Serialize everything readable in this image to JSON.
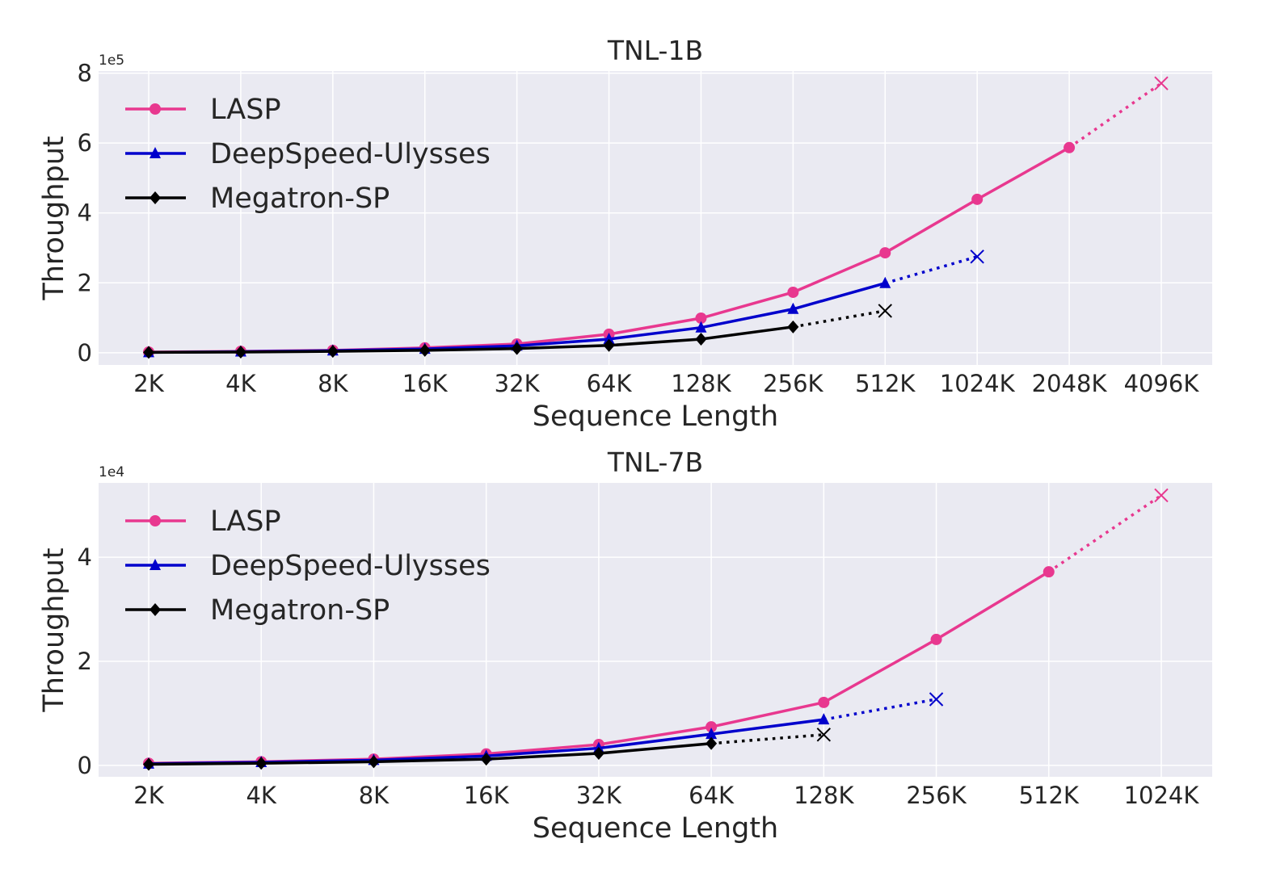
{
  "chart_data": [
    {
      "type": "line",
      "title": "TNL-1B",
      "xlabel": "Sequence Length",
      "ylabel": "Throughput",
      "y_multiplier_label": "1e5",
      "categories": [
        "2K",
        "4K",
        "8K",
        "16K",
        "32K",
        "64K",
        "128K",
        "256K",
        "512K",
        "1024K",
        "2048K",
        "4096K"
      ],
      "yticks": [
        0,
        2,
        4,
        6,
        8
      ],
      "ylim": [
        -0.35,
        8.06
      ],
      "grid": true,
      "legend": "top-left",
      "series": [
        {
          "name": "LASP",
          "color": "#e8388f",
          "marker": "circle",
          "values": [
            0.02,
            0.04,
            0.07,
            0.14,
            0.25,
            0.53,
            0.99,
            1.73,
            2.86,
            4.39,
            5.87,
            null
          ],
          "oom_estimate": {
            "category": "4096K",
            "value": 7.71
          }
        },
        {
          "name": "DeepSpeed-Ulysses",
          "color": "#0000cc",
          "marker": "triangle",
          "values": [
            0.01,
            0.03,
            0.06,
            0.11,
            0.2,
            0.39,
            0.72,
            1.25,
            1.99,
            null,
            null,
            null
          ],
          "oom_estimate": {
            "category": "1024K",
            "value": 2.75
          }
        },
        {
          "name": "Megatron-SP",
          "color": "#000000",
          "marker": "diamond",
          "values": [
            0.01,
            0.02,
            0.04,
            0.07,
            0.12,
            0.21,
            0.39,
            0.74,
            null,
            null,
            null,
            null
          ],
          "oom_estimate": {
            "category": "512K",
            "value": 1.2
          }
        }
      ]
    },
    {
      "type": "line",
      "title": "TNL-7B",
      "xlabel": "Sequence Length",
      "ylabel": "Throughput",
      "y_multiplier_label": "1e4",
      "categories": [
        "2K",
        "4K",
        "8K",
        "16K",
        "32K",
        "64K",
        "128K",
        "256K",
        "512K",
        "1024K"
      ],
      "yticks": [
        0,
        2,
        4
      ],
      "ylim": [
        -0.22,
        5.43
      ],
      "grid": true,
      "legend": "top-left",
      "series": [
        {
          "name": "LASP",
          "color": "#e8388f",
          "marker": "circle",
          "values": [
            0.04,
            0.07,
            0.12,
            0.22,
            0.4,
            0.74,
            1.21,
            2.42,
            3.72,
            null
          ],
          "oom_estimate": {
            "category": "1024K",
            "value": 5.19
          }
        },
        {
          "name": "DeepSpeed-Ulysses",
          "color": "#0000cc",
          "marker": "triangle",
          "values": [
            0.03,
            0.06,
            0.1,
            0.18,
            0.33,
            0.6,
            0.88,
            null,
            null,
            null
          ],
          "oom_estimate": {
            "category": "256K",
            "value": 1.27
          }
        },
        {
          "name": "Megatron-SP",
          "color": "#000000",
          "marker": "diamond",
          "values": [
            0.02,
            0.04,
            0.07,
            0.12,
            0.23,
            0.42,
            null,
            null,
            null,
            null
          ],
          "oom_estimate": {
            "category": "128K",
            "value": 0.59
          }
        }
      ]
    }
  ]
}
